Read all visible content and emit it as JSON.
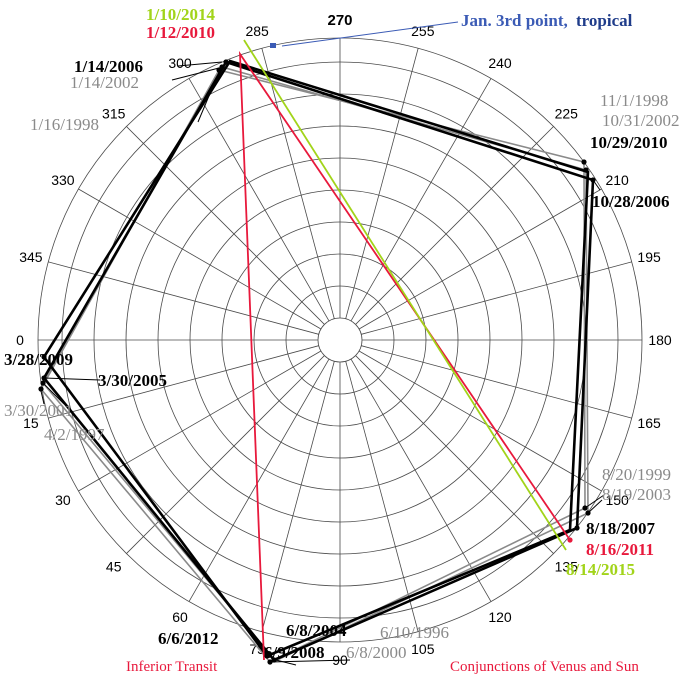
{
  "diagram": {
    "colors": {
      "black": "#000000",
      "gray": "#8a8a8a",
      "red": "#e8193c",
      "green": "#a2d41a",
      "blue": "#3b5bb5",
      "navy": "#1f3c8a",
      "grid": "#4a4a4a"
    },
    "degree_ticks": [
      {
        "deg": 0,
        "label": "0"
      },
      {
        "deg": 15,
        "label": "15"
      },
      {
        "deg": 30,
        "label": "30"
      },
      {
        "deg": 45,
        "label": "45"
      },
      {
        "deg": 60,
        "label": "60"
      },
      {
        "deg": 75,
        "label": "75"
      },
      {
        "deg": 90,
        "label": "90"
      },
      {
        "deg": 105,
        "label": "105"
      },
      {
        "deg": 120,
        "label": "120"
      },
      {
        "deg": 135,
        "label": "135"
      },
      {
        "deg": 150,
        "label": "150"
      },
      {
        "deg": 165,
        "label": "165"
      },
      {
        "deg": 180,
        "label": "180"
      },
      {
        "deg": 195,
        "label": "195"
      },
      {
        "deg": 210,
        "label": "210"
      },
      {
        "deg": 225,
        "label": "225"
      },
      {
        "deg": 240,
        "label": "240"
      },
      {
        "deg": 255,
        "label": "255"
      },
      {
        "deg": 270,
        "label": "270"
      },
      {
        "deg": 285,
        "label": "285"
      },
      {
        "deg": 300,
        "label": "300"
      },
      {
        "deg": 315,
        "label": "315"
      },
      {
        "deg": 330,
        "label": "330"
      },
      {
        "deg": 345,
        "label": "345"
      }
    ],
    "header_note_blue": "Jan. 3rd point,",
    "header_note_navy": "tropical",
    "footer_left": "Inferior Transit",
    "footer_right": "Conjunctions of Venus and Sun",
    "cycles": [
      {
        "id": "cycle-1996",
        "color": "gray",
        "dates": [
          "4/2/1997",
          "6/10/1996",
          "8/20/1999",
          "11/1/1998",
          "1/16/1998"
        ]
      },
      {
        "id": "cycle-2000",
        "color": "gray",
        "dates": [
          "3/30/2001",
          "6/8/2000",
          "8/19/2003",
          "10/31/2002",
          "1/14/2002"
        ]
      },
      {
        "id": "cycle-2004",
        "color": "black",
        "dates": [
          "3/30/2005",
          "6/8/2004",
          "8/18/2007",
          "10/28/2006",
          "1/14/2006"
        ]
      },
      {
        "id": "cycle-2008",
        "color": "black",
        "dates": [
          "3/28/2009",
          "6/9/2008",
          "8/16/2011",
          "10/29/2010",
          "1/12/2010"
        ]
      },
      {
        "id": "cycle-2012",
        "color": "red",
        "dates": [
          "6/6/2012",
          "1/12/2010"
        ]
      },
      {
        "id": "cycle-2014",
        "color": "green",
        "dates": [
          "1/10/2014",
          "8/14/2015"
        ]
      }
    ],
    "date_labels": [
      {
        "text": "1/10/2014",
        "color": "green"
      },
      {
        "text": "1/12/2010",
        "color": "red"
      },
      {
        "text": "1/14/2006",
        "color": "black"
      },
      {
        "text": "1/14/2002",
        "color": "gray"
      },
      {
        "text": "1/16/1998",
        "color": "gray"
      },
      {
        "text": "11/1/1998",
        "color": "gray"
      },
      {
        "text": "10/31/2002",
        "color": "gray"
      },
      {
        "text": "10/29/2010",
        "color": "black"
      },
      {
        "text": "10/28/2006",
        "color": "black"
      },
      {
        "text": "3/28/2009",
        "color": "black"
      },
      {
        "text": "3/30/2005",
        "color": "black"
      },
      {
        "text": "3/30/2001",
        "color": "gray"
      },
      {
        "text": "4/2/1997",
        "color": "gray"
      },
      {
        "text": "8/20/1999",
        "color": "gray"
      },
      {
        "text": "8/19/2003",
        "color": "gray"
      },
      {
        "text": "8/18/2007",
        "color": "black"
      },
      {
        "text": "8/16/2011",
        "color": "red"
      },
      {
        "text": "8/14/2015",
        "color": "green"
      },
      {
        "text": "6/8/2004",
        "color": "black"
      },
      {
        "text": "6/10/1996",
        "color": "gray"
      },
      {
        "text": "6/8/2000",
        "color": "gray"
      },
      {
        "text": "6/6/2012",
        "color": "black"
      },
      {
        "text": "6/9/2008",
        "color": "black"
      }
    ]
  }
}
